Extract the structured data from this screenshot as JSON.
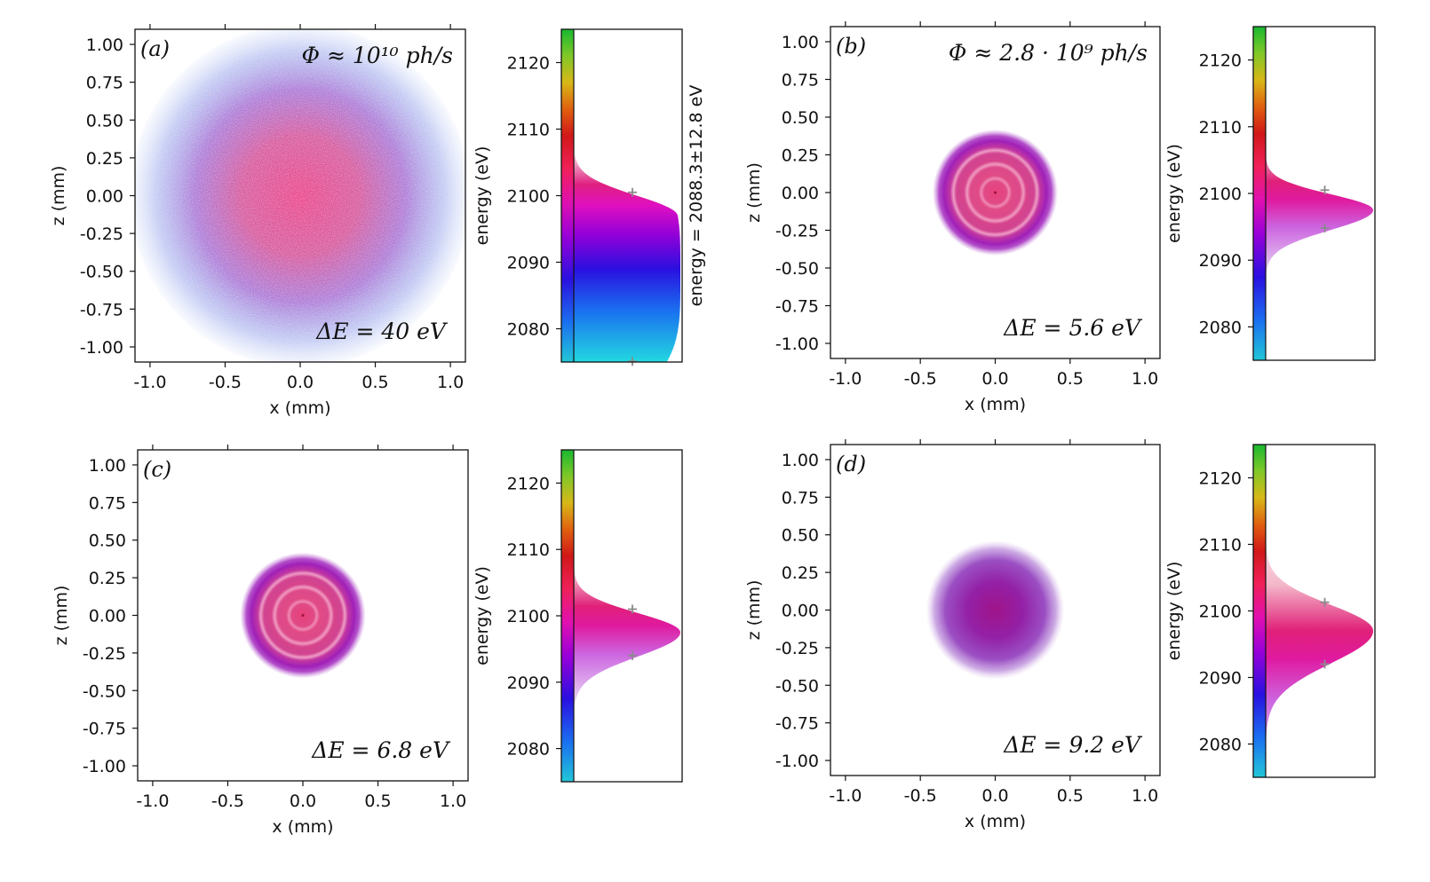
{
  "chart_data": [
    {
      "type": "scatter",
      "panel_label": "(a)",
      "flux_label": "Φ ≈ 10¹⁰ ph/s",
      "bandwidth_label": "ΔE = 40 eV",
      "xlabel": "x (mm)",
      "ylabel": "z (mm)",
      "xlim": [
        -1.1,
        1.1
      ],
      "ylim": [
        -1.1,
        1.1
      ],
      "xticks": [
        -1.0,
        -0.5,
        0.0,
        0.5,
        1.0
      ],
      "xtick_labels": [
        "-1.0",
        "-0.5",
        "0.0",
        "0.5",
        "1.0"
      ],
      "yticks": [
        1.0,
        0.75,
        0.5,
        0.25,
        0.0,
        -0.25,
        -0.5,
        -0.75,
        -1.0
      ],
      "ytick_labels": [
        "1.00",
        "0.75",
        "0.50",
        "0.25",
        "0.00",
        "-0.25",
        "-0.50",
        "-0.75",
        "-1.00"
      ],
      "spot": {
        "style": "diffuse",
        "radius_mm": 1.05
      },
      "energy": {
        "ylabel": "energy (eV)",
        "ylim": [
          2075,
          2125
        ],
        "yticks": [
          2120,
          2110,
          2100,
          2090,
          2080
        ],
        "ytick_labels": [
          "2120",
          "2110",
          "2100",
          "2090",
          "2080"
        ],
        "stats_label": "energy = 2088.3±12.8 eV",
        "center_eV": 2088.3,
        "fwhm_eV": 40,
        "hist_low_eV": 2075,
        "hist_high_eV": 2106,
        "markers_eV": [
          2100.5,
          2075.1
        ]
      }
    },
    {
      "type": "scatter",
      "panel_label": "(b)",
      "flux_label": "Φ ≈ 2.8 · 10⁹ ph/s",
      "bandwidth_label": "ΔE = 5.6 eV",
      "xlabel": "x (mm)",
      "ylabel": "z (mm)",
      "xlim": [
        -1.1,
        1.1
      ],
      "ylim": [
        -1.1,
        1.1
      ],
      "xticks": [
        -1.0,
        -0.5,
        0.0,
        0.5,
        1.0
      ],
      "xtick_labels": [
        "-1.0",
        "-0.5",
        "0.0",
        "0.5",
        "1.0"
      ],
      "yticks": [
        1.0,
        0.75,
        0.5,
        0.25,
        0.0,
        -0.25,
        -0.5,
        -0.75,
        -1.0
      ],
      "ytick_labels": [
        "1.00",
        "0.75",
        "0.50",
        "0.25",
        "0.00",
        "-0.25",
        "-0.50",
        "-0.75",
        "-1.00"
      ],
      "spot": {
        "style": "rings",
        "radius_mm": 0.38
      },
      "energy": {
        "ylabel": "energy (eV)",
        "ylim": [
          2075,
          2125
        ],
        "yticks": [
          2120,
          2110,
          2100,
          2090,
          2080
        ],
        "ytick_labels": [
          "2120",
          "2110",
          "2100",
          "2090",
          "2080"
        ],
        "center_eV": 2097.5,
        "fwhm_eV": 5.6,
        "hist_low_eV": 2088,
        "hist_high_eV": 2111,
        "markers_eV": [
          2100.5,
          2094.8
        ]
      }
    },
    {
      "type": "scatter",
      "panel_label": "(c)",
      "bandwidth_label": "ΔE = 6.8 eV",
      "xlabel": "x (mm)",
      "ylabel": "z (mm)",
      "xlim": [
        -1.1,
        1.1
      ],
      "ylim": [
        -1.1,
        1.1
      ],
      "xticks": [
        -1.0,
        -0.5,
        0.0,
        0.5,
        1.0
      ],
      "xtick_labels": [
        "-1.0",
        "-0.5",
        "0.0",
        "0.5",
        "1.0"
      ],
      "yticks": [
        1.0,
        0.75,
        0.5,
        0.25,
        0.0,
        -0.25,
        -0.5,
        -0.75,
        -1.0
      ],
      "ytick_labels": [
        "1.00",
        "0.75",
        "0.50",
        "0.25",
        "0.00",
        "-0.25",
        "-0.50",
        "-0.75",
        "-1.00"
      ],
      "spot": {
        "style": "rings",
        "radius_mm": 0.38
      },
      "energy": {
        "ylabel": "energy (eV)",
        "ylim": [
          2075,
          2125
        ],
        "yticks": [
          2120,
          2110,
          2100,
          2090,
          2080
        ],
        "ytick_labels": [
          "2120",
          "2110",
          "2100",
          "2090",
          "2080"
        ],
        "center_eV": 2097.5,
        "fwhm_eV": 6.8,
        "hist_low_eV": 2087,
        "hist_high_eV": 2111,
        "markers_eV": [
          2101.0,
          2094.0
        ]
      }
    },
    {
      "type": "scatter",
      "panel_label": "(d)",
      "bandwidth_label": "ΔE = 9.2 eV",
      "xlabel": "x (mm)",
      "ylabel": "z (mm)",
      "xlim": [
        -1.1,
        1.1
      ],
      "ylim": [
        -1.1,
        1.1
      ],
      "xticks": [
        -1.0,
        -0.5,
        0.0,
        0.5,
        1.0
      ],
      "xtick_labels": [
        "-1.0",
        "-0.5",
        "0.0",
        "0.5",
        "1.0"
      ],
      "yticks": [
        1.0,
        0.75,
        0.5,
        0.25,
        0.0,
        -0.25,
        -0.5,
        -0.75,
        -1.0
      ],
      "ytick_labels": [
        "1.00",
        "0.75",
        "0.50",
        "0.25",
        "0.00",
        "-0.25",
        "-0.50",
        "-0.75",
        "-1.00"
      ],
      "spot": {
        "style": "soft",
        "radius_mm": 0.42
      },
      "energy": {
        "ylabel": "energy (eV)",
        "ylim": [
          2075,
          2125
        ],
        "yticks": [
          2120,
          2110,
          2100,
          2090,
          2080
        ],
        "ytick_labels": [
          "2120",
          "2110",
          "2100",
          "2090",
          "2080"
        ],
        "center_eV": 2097.0,
        "fwhm_eV": 9.2,
        "hist_low_eV": 2076,
        "hist_high_eV": 2111,
        "markers_eV": [
          2101.3,
          2092.0
        ]
      }
    }
  ]
}
